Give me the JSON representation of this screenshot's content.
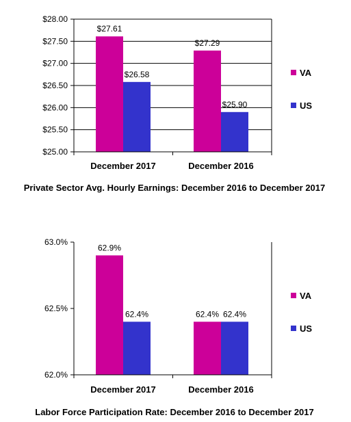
{
  "colors": {
    "va": "#cc0099",
    "us": "#3333cc",
    "axis": "#000000",
    "grid": "#000000"
  },
  "chart_data": [
    {
      "type": "bar",
      "title": "Private Sector Avg. Hourly Earnings:  December 2016 to December 2017",
      "categories": [
        "December 2017",
        "December 2016"
      ],
      "series": [
        {
          "name": "VA",
          "values": [
            27.61,
            27.29
          ],
          "labels": [
            "$27.61",
            "$27.29"
          ]
        },
        {
          "name": "US",
          "values": [
            26.58,
            25.9
          ],
          "labels": [
            "$26.58",
            "$25.90"
          ]
        }
      ],
      "ylim": [
        25.0,
        28.0
      ],
      "yticks": [
        25.0,
        25.5,
        26.0,
        26.5,
        27.0,
        27.5,
        28.0
      ],
      "ytick_labels": [
        "$25.00",
        "$25.50",
        "$26.00",
        "$26.50",
        "$27.00",
        "$27.50",
        "$28.00"
      ],
      "grid": true,
      "legend": "right"
    },
    {
      "type": "bar",
      "title": "Labor Force Participation Rate:  December 2016 to December 2017",
      "categories": [
        "December 2017",
        "December 2016"
      ],
      "series": [
        {
          "name": "VA",
          "values": [
            62.9,
            62.4
          ],
          "labels": [
            "62.9%",
            "62.4%"
          ]
        },
        {
          "name": "US",
          "values": [
            62.4,
            62.4
          ],
          "labels": [
            "62.4%",
            "62.4%"
          ]
        }
      ],
      "ylim": [
        62.0,
        63.0
      ],
      "yticks": [
        62.0,
        62.5,
        63.0
      ],
      "ytick_labels": [
        "62.0%",
        "62.5%",
        "63.0%"
      ],
      "grid": false,
      "legend": "right"
    }
  ]
}
